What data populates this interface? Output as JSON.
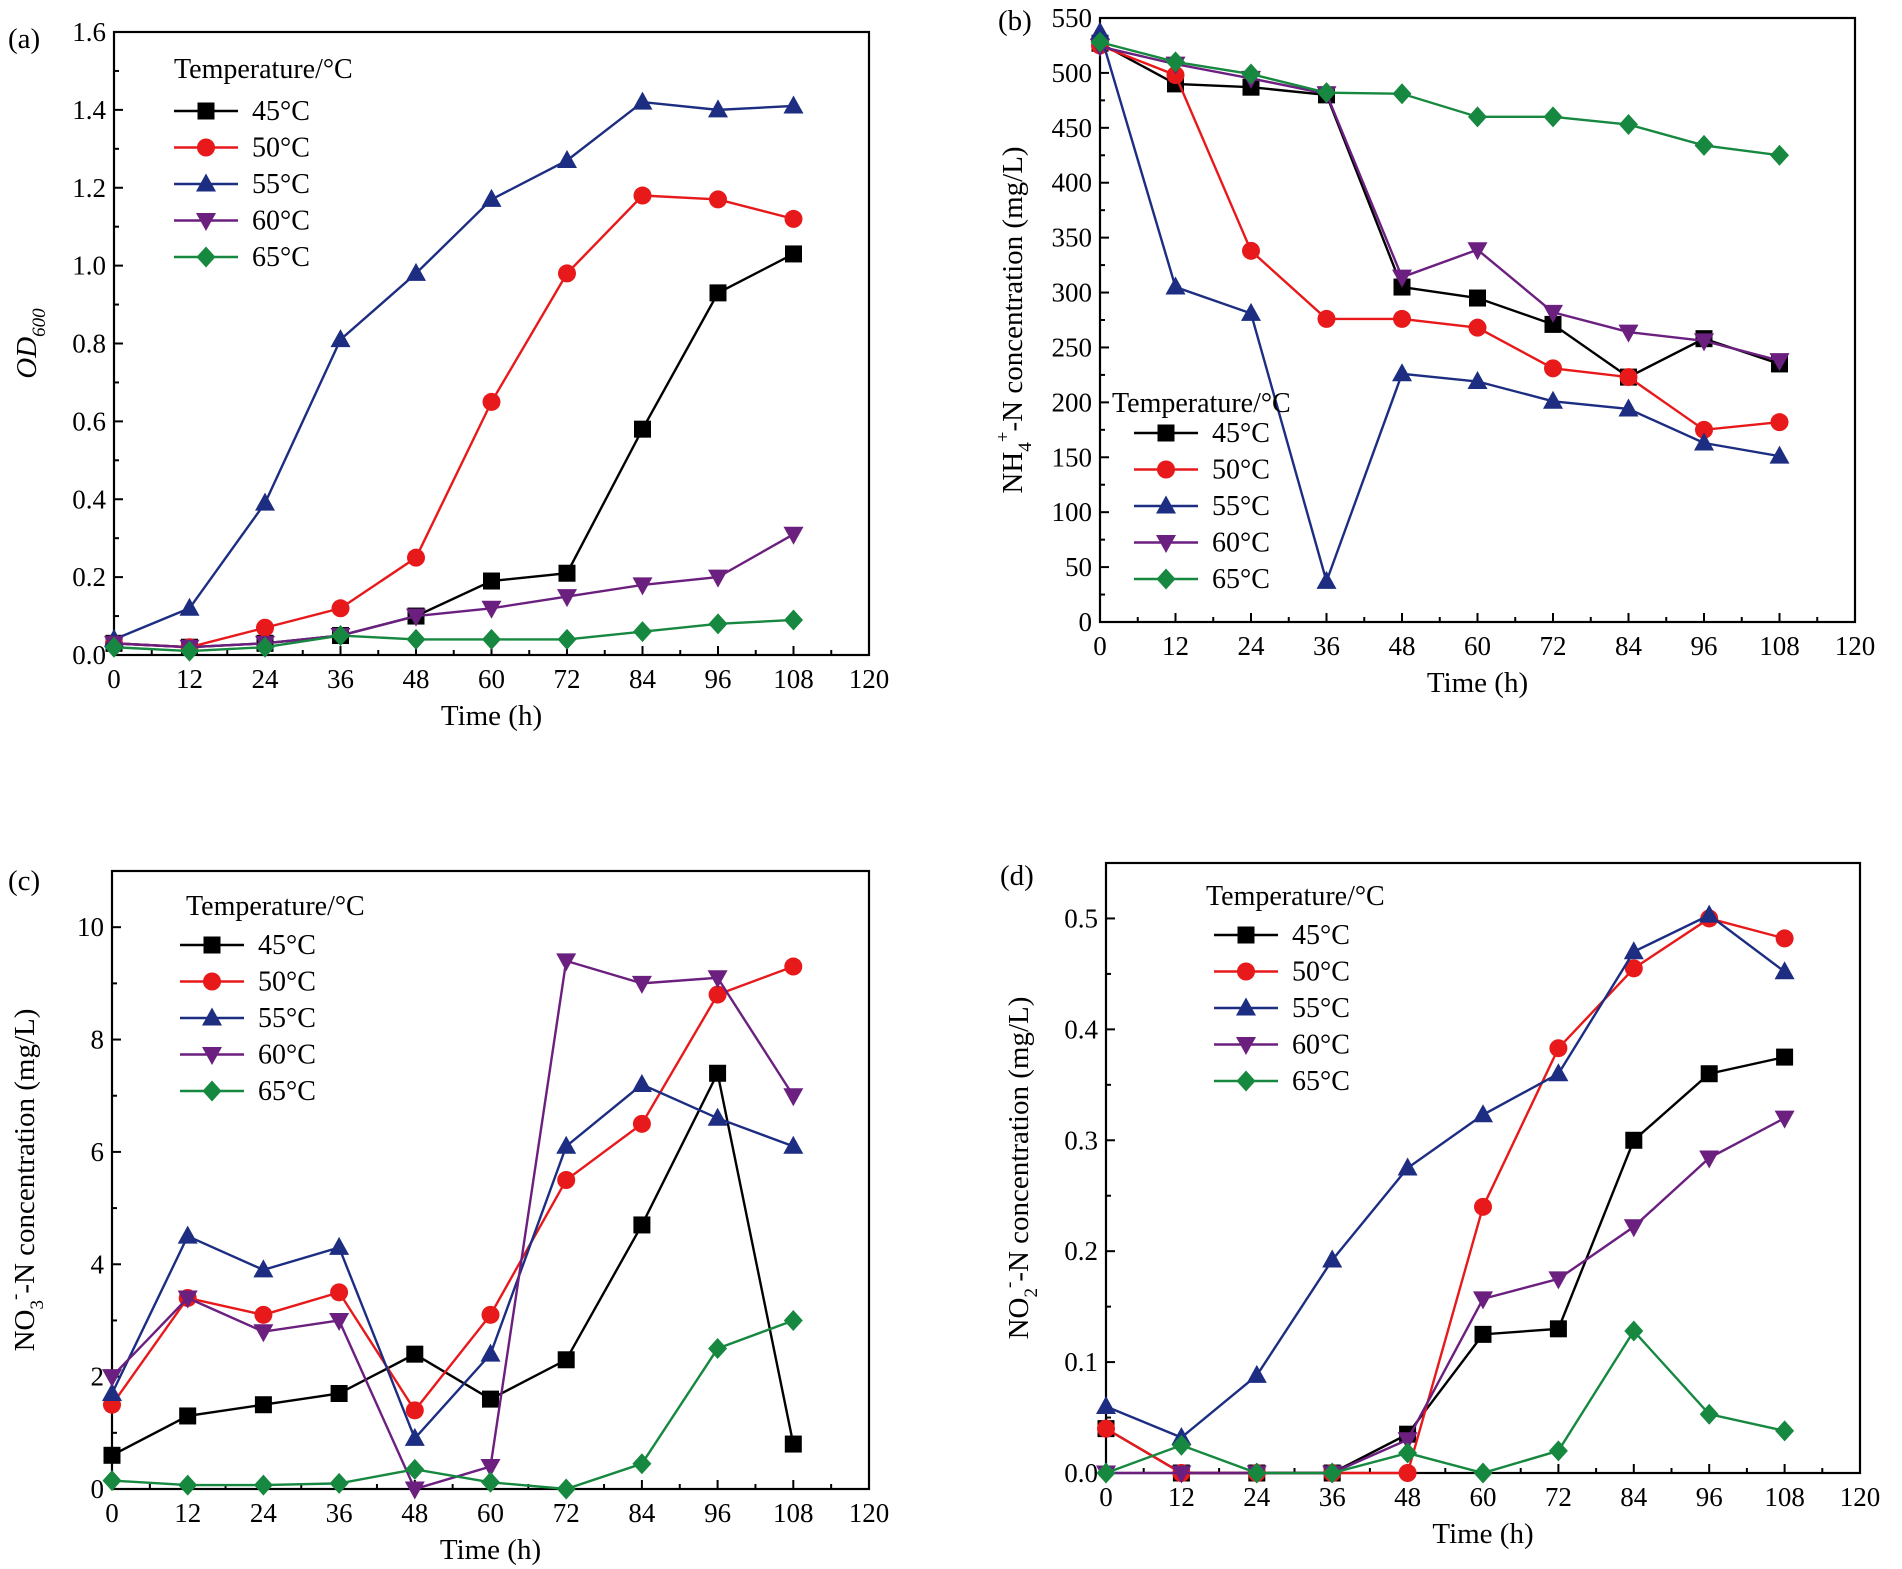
{
  "colors": {
    "45": "#000000",
    "50": "#e8191b",
    "55": "#1c2d82",
    "60": "#6b1f7f",
    "65": "#16883f"
  },
  "legend_title": "Temperature/°C",
  "chart_data": [
    {
      "id": "a",
      "panel_label": "(a)",
      "type": "line",
      "xlabel": "Time (h)",
      "ylabel_main": "OD",
      "ylabel_sub": "600",
      "xlim": [
        0,
        120
      ],
      "ylim": [
        0,
        1.6
      ],
      "xticks": [
        0,
        12,
        24,
        36,
        48,
        60,
        72,
        84,
        96,
        108,
        120
      ],
      "yticks": [
        0.0,
        0.2,
        0.4,
        0.6,
        0.8,
        1.0,
        1.2,
        1.4,
        1.6
      ],
      "ytick_labels": [
        "0.0",
        "0.2",
        "0.4",
        "0.6",
        "0.8",
        "1.0",
        "1.2",
        "1.4",
        "1.6"
      ],
      "x": [
        0,
        12,
        24,
        36,
        48,
        60,
        72,
        84,
        96,
        108
      ],
      "legend_position": "top-left",
      "series": [
        {
          "name": "45°C",
          "marker": "square",
          "color_key": "45",
          "values": [
            0.03,
            0.02,
            0.03,
            0.05,
            0.1,
            0.19,
            0.21,
            0.58,
            0.93,
            1.03
          ]
        },
        {
          "name": "50°C",
          "marker": "circle",
          "color_key": "50",
          "values": [
            0.03,
            0.02,
            0.07,
            0.12,
            0.25,
            0.65,
            0.98,
            1.18,
            1.17,
            1.12
          ]
        },
        {
          "name": "55°C",
          "marker": "triangle-up",
          "color_key": "55",
          "values": [
            0.04,
            0.12,
            0.39,
            0.81,
            0.98,
            1.17,
            1.27,
            1.42,
            1.4,
            1.41
          ]
        },
        {
          "name": "60°C",
          "marker": "triangle-down",
          "color_key": "60",
          "values": [
            0.03,
            0.02,
            0.03,
            0.05,
            0.1,
            0.12,
            0.15,
            0.18,
            0.2,
            0.31
          ]
        },
        {
          "name": "65°C",
          "marker": "diamond",
          "color_key": "65",
          "values": [
            0.02,
            0.01,
            0.02,
            0.05,
            0.04,
            0.04,
            0.04,
            0.06,
            0.08,
            0.09
          ]
        }
      ]
    },
    {
      "id": "b",
      "panel_label": "(b)",
      "type": "line",
      "xlabel": "Time (h)",
      "ylabel_prefix": "NH",
      "ylabel_sub": "4",
      "ylabel_sup": "+",
      "ylabel_suffix": "-N concentration (mg/L)",
      "xlim": [
        0,
        120
      ],
      "ylim": [
        0,
        550
      ],
      "xticks": [
        0,
        12,
        24,
        36,
        48,
        60,
        72,
        84,
        96,
        108,
        120
      ],
      "yticks": [
        0,
        50,
        100,
        150,
        200,
        250,
        300,
        350,
        400,
        450,
        500,
        550
      ],
      "ytick_labels": [
        "0",
        "50",
        "100",
        "150",
        "200",
        "250",
        "300",
        "350",
        "400",
        "450",
        "500",
        "550"
      ],
      "x": [
        0,
        12,
        24,
        36,
        48,
        60,
        72,
        84,
        96,
        108
      ],
      "legend_position": "bottom-left",
      "series": [
        {
          "name": "45°C",
          "marker": "square",
          "color_key": "45",
          "values": [
            527,
            490,
            487,
            480,
            305,
            295,
            271,
            223,
            258,
            235
          ]
        },
        {
          "name": "50°C",
          "marker": "circle",
          "color_key": "50",
          "values": [
            525,
            498,
            338,
            276,
            276,
            268,
            231,
            223,
            175,
            182
          ]
        },
        {
          "name": "55°C",
          "marker": "triangle-up",
          "color_key": "55",
          "values": [
            537,
            305,
            281,
            37,
            226,
            219,
            201,
            194,
            163,
            151
          ]
        },
        {
          "name": "60°C",
          "marker": "triangle-down",
          "color_key": "60",
          "values": [
            524,
            508,
            495,
            481,
            314,
            339,
            282,
            264,
            256,
            238
          ]
        },
        {
          "name": "65°C",
          "marker": "diamond",
          "color_key": "65",
          "values": [
            528,
            510,
            499,
            482,
            481,
            460,
            460,
            453,
            434,
            425
          ]
        }
      ]
    },
    {
      "id": "c",
      "panel_label": "(c)",
      "type": "line",
      "xlabel": "Time (h)",
      "ylabel_prefix": "NO",
      "ylabel_sub": "3",
      "ylabel_sup": "-",
      "ylabel_suffix": "-N concentration (mg/L)",
      "xlim": [
        0,
        120
      ],
      "ylim": [
        0,
        11
      ],
      "xticks": [
        0,
        12,
        24,
        36,
        48,
        60,
        72,
        84,
        96,
        108,
        120
      ],
      "yticks": [
        0,
        2,
        4,
        6,
        8,
        10
      ],
      "ytick_labels": [
        "0",
        "2",
        "4",
        "6",
        "8",
        "10"
      ],
      "x": [
        0,
        12,
        24,
        36,
        48,
        60,
        72,
        84,
        96,
        108
      ],
      "legend_position": "top-left",
      "series": [
        {
          "name": "45°C",
          "marker": "square",
          "color_key": "45",
          "values": [
            0.6,
            1.3,
            1.5,
            1.7,
            2.4,
            1.6,
            2.3,
            4.7,
            7.4,
            0.8
          ]
        },
        {
          "name": "50°C",
          "marker": "circle",
          "color_key": "50",
          "values": [
            1.5,
            3.4,
            3.1,
            3.5,
            1.4,
            3.1,
            5.5,
            6.5,
            8.8,
            9.3
          ]
        },
        {
          "name": "55°C",
          "marker": "triangle-up",
          "color_key": "55",
          "values": [
            1.7,
            4.5,
            3.9,
            4.3,
            0.9,
            2.4,
            6.1,
            7.2,
            6.6,
            6.1
          ]
        },
        {
          "name": "60°C",
          "marker": "triangle-down",
          "color_key": "60",
          "values": [
            2.0,
            3.4,
            2.8,
            3.0,
            0.0,
            0.4,
            9.4,
            9.0,
            9.1,
            7.0
          ]
        },
        {
          "name": "65°C",
          "marker": "diamond",
          "color_key": "65",
          "values": [
            0.15,
            0.07,
            0.07,
            0.1,
            0.35,
            0.12,
            0.0,
            0.45,
            2.5,
            3.0
          ]
        }
      ]
    },
    {
      "id": "d",
      "panel_label": "(d)",
      "type": "line",
      "xlabel": "Time (h)",
      "ylabel_prefix": "NO",
      "ylabel_sub": "2",
      "ylabel_sup": "-",
      "ylabel_suffix": "-N concentration (mg/L)",
      "xlim": [
        0,
        120
      ],
      "ylim": [
        0,
        0.55
      ],
      "xticks": [
        0,
        12,
        24,
        36,
        48,
        60,
        72,
        84,
        96,
        108,
        120
      ],
      "yticks": [
        0.0,
        0.1,
        0.2,
        0.3,
        0.4,
        0.5
      ],
      "ytick_labels": [
        "0.0",
        "0.1",
        "0.2",
        "0.3",
        "0.4",
        "0.5"
      ],
      "x": [
        0,
        12,
        24,
        36,
        48,
        60,
        72,
        84,
        96,
        108
      ],
      "legend_position": "top-left",
      "series": [
        {
          "name": "45°C",
          "marker": "square",
          "color_key": "45",
          "values": [
            0.04,
            0.0,
            0.0,
            0.0,
            0.035,
            0.125,
            0.13,
            0.3,
            0.36,
            0.375
          ]
        },
        {
          "name": "50°C",
          "marker": "circle",
          "color_key": "50",
          "values": [
            0.04,
            0.0,
            0.0,
            0.0,
            0.0,
            0.24,
            0.383,
            0.455,
            0.5,
            0.482
          ]
        },
        {
          "name": "55°C",
          "marker": "triangle-up",
          "color_key": "55",
          "values": [
            0.06,
            0.032,
            0.088,
            0.192,
            0.275,
            0.323,
            0.36,
            0.47,
            0.503,
            0.452
          ]
        },
        {
          "name": "60°C",
          "marker": "triangle-down",
          "color_key": "60",
          "values": [
            0.0,
            0.0,
            0.0,
            0.0,
            0.03,
            0.157,
            0.175,
            0.222,
            0.284,
            0.32
          ]
        },
        {
          "name": "65°C",
          "marker": "diamond",
          "color_key": "65",
          "values": [
            0.0,
            0.025,
            0.0,
            0.0,
            0.018,
            0.0,
            0.02,
            0.128,
            0.053,
            0.038
          ]
        }
      ]
    }
  ]
}
